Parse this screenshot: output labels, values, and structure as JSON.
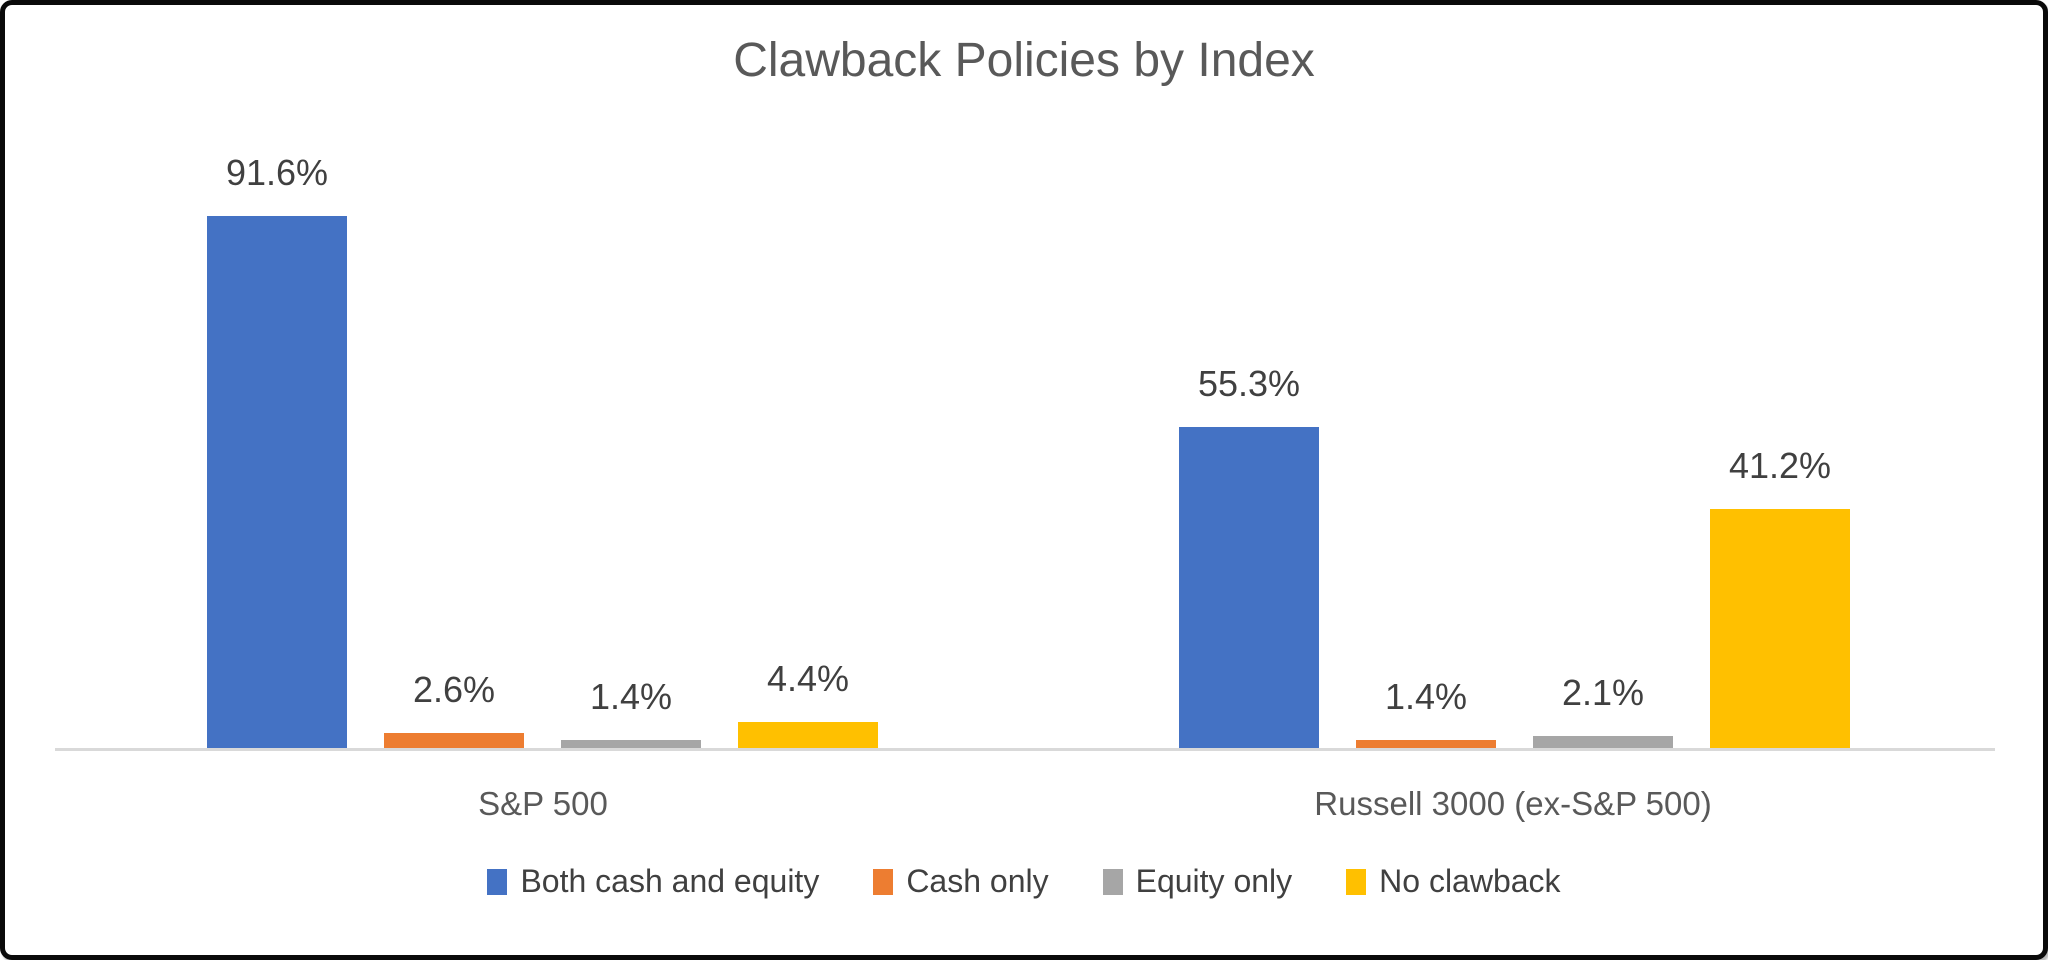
{
  "chart_data": {
    "type": "bar",
    "title": "Clawback Policies by Index",
    "categories": [
      "S&P 500",
      "Russell 3000 (ex-S&P 500)"
    ],
    "series": [
      {
        "name": "Both cash and equity",
        "color": "#4472C4",
        "values": [
          91.6,
          55.3
        ]
      },
      {
        "name": "Cash only",
        "color": "#ED7D31",
        "values": [
          2.6,
          1.4
        ]
      },
      {
        "name": "Equity only",
        "color": "#A6A6A6",
        "values": [
          1.4,
          2.1
        ]
      },
      {
        "name": "No clawback",
        "color": "#FFC000",
        "values": [
          4.4,
          41.2
        ]
      }
    ],
    "data_labels": {
      "S&P 500": [
        "91.6%",
        "2.6%",
        "1.4%",
        "4.4%"
      ],
      "Russell 3000 (ex-S&P 500)": [
        "55.3%",
        "1.4%",
        "2.1%",
        "41.2%"
      ]
    },
    "value_format": "percent_one_decimal",
    "ylim": [
      0,
      100
    ],
    "grid": false,
    "y_axis_visible": false,
    "legend_position": "bottom",
    "axis_line_color": "#D9D9D9",
    "title_color": "#595959",
    "label_color": "#404040",
    "category_label_color": "#595959"
  }
}
